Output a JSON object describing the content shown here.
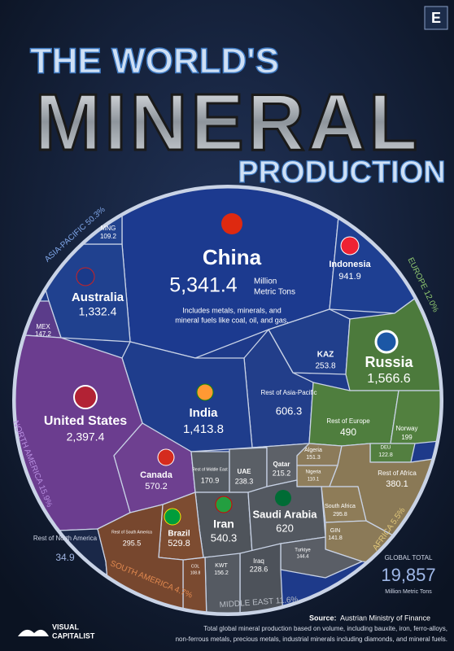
{
  "header": {
    "line1": "THE WORLD'S",
    "line2": "MINERAL",
    "line3": "PRODUCTION",
    "badge": "E"
  },
  "regions": [
    {
      "name": "ASIA-PACIFIC",
      "share": "50.3%"
    },
    {
      "name": "EUROPE",
      "share": "12.0%"
    },
    {
      "name": "AFRICA",
      "share": "5.5%"
    },
    {
      "name": "MIDDLE EAST",
      "share": "11.6%"
    },
    {
      "name": "SOUTH AMERICA",
      "share": "4.7%"
    },
    {
      "name": "NORTH AMERICA",
      "share": "15.9%"
    }
  ],
  "china": {
    "label": "China",
    "value": "5,341.4",
    "unit": [
      "Million",
      "Metric Tons"
    ],
    "note": [
      "Includes metals, minerals, and",
      "mineral fuels like coal, oil, and gas."
    ]
  },
  "cells": [
    {
      "label": "Indonesia",
      "value": "941.9"
    },
    {
      "label": "Australia",
      "value": "1,332.4"
    },
    {
      "label": "MNG",
      "value": "109.2"
    },
    {
      "label": "MEX",
      "value": "147.2"
    },
    {
      "label": "KAZ",
      "value": "253.8"
    },
    {
      "label": "India",
      "value": "1,413.8"
    },
    {
      "label": "Rest of Asia-Pacific",
      "value": "606.3"
    },
    {
      "label": "Russia",
      "value": "1,566.6"
    },
    {
      "label": "Rest of Europe",
      "value": "490"
    },
    {
      "label": "Norway",
      "value": "199"
    },
    {
      "label": "DEU",
      "value": "122.8"
    },
    {
      "label": "United States",
      "value": "2,397.4"
    },
    {
      "label": "Canada",
      "value": "570.2"
    },
    {
      "label": "Rest of North America",
      "value": "34.9"
    },
    {
      "label": "Rest of Middle East",
      "value": "170.9"
    },
    {
      "label": "UAE",
      "value": "238.3"
    },
    {
      "label": "Qatar",
      "value": "215.2"
    },
    {
      "label": "Algeria",
      "value": "151.3"
    },
    {
      "label": "Nigeria",
      "value": "110.1"
    },
    {
      "label": "Rest of Africa",
      "value": "380.1"
    },
    {
      "label": "South Africa",
      "value": "295.8"
    },
    {
      "label": "GIN",
      "value": "141.8"
    },
    {
      "label": "Iran",
      "value": "540.3"
    },
    {
      "label": "Saudi Arabia",
      "value": "620"
    },
    {
      "label": "Turkiye",
      "value": "144.4"
    },
    {
      "label": "Iraq",
      "value": "228.6"
    },
    {
      "label": "KWT",
      "value": "156.2"
    },
    {
      "label": "COL",
      "value": "108.8"
    },
    {
      "label": "Brazil",
      "value": "529.8"
    },
    {
      "label": "Rest of South America",
      "value": "295.5"
    }
  ],
  "total": {
    "label": "GLOBAL TOTAL",
    "value": "19,857",
    "unit": "Million Metric Tons"
  },
  "source": {
    "label": "Source:",
    "text": "Austrian Ministry of Finance",
    "note": [
      "Total global mineral production based on volume, including bauxite, iron, ferro-alloys,",
      "non-ferrous metals, precious metals, industrial minerals including diamonds, and mineral fuels."
    ]
  },
  "brand": [
    "VISUAL",
    "CAPITALIST"
  ]
}
